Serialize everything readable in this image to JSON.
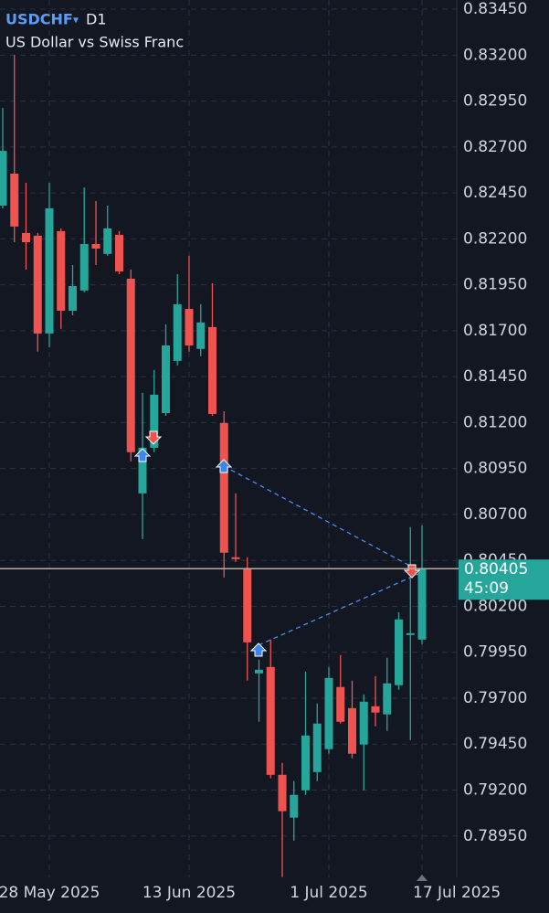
{
  "chart_data": {
    "type": "candlestick",
    "symbol": "USDCHF",
    "dropdown": "▾",
    "timeframe": "D1",
    "title": "US Dollar vs Swiss Franc",
    "categories": [
      null,
      null,
      null,
      null,
      "28 May 2025",
      null,
      null,
      null,
      null,
      null,
      null,
      null,
      null,
      null,
      null,
      null,
      "13 Jun 2025",
      null,
      null,
      null,
      null,
      null,
      null,
      null,
      null,
      null,
      null,
      null,
      "1 Jul 2025",
      null,
      null,
      null,
      null,
      null,
      null,
      null,
      "17 Jul 2025"
    ],
    "open": [
      0.82381,
      0.82555,
      0.82232,
      0.82217,
      0.81685,
      0.82242,
      0.81809,
      0.81919,
      0.82172,
      0.82118,
      0.82222,
      0.81983,
      0.80815,
      0.81063,
      0.81252,
      0.81536,
      0.81819,
      0.81601,
      0.8172,
      0.81198,
      0.80467,
      0.80407,
      0.79835,
      0.7987,
      0.79283,
      0.7905,
      0.79199,
      0.79298,
      0.79423,
      0.79761,
      0.79646,
      0.79448,
      0.79656,
      0.79612,
      0.79771,
      0.80044,
      0.80019
    ],
    "high": [
      0.82913,
      0.83201,
      0.82505,
      0.82232,
      0.82505,
      0.82257,
      0.82058,
      0.8248,
      0.82406,
      0.82381,
      0.82242,
      0.82033,
      0.81362,
      0.81486,
      0.81735,
      0.82008,
      0.82108,
      0.81844,
      0.81958,
      0.81262,
      0.80815,
      0.80467,
      0.7991,
      0.80019,
      0.79348,
      0.79249,
      0.79845,
      0.79671,
      0.7987,
      0.79935,
      0.79796,
      0.79721,
      0.7982,
      0.7992,
      0.80168,
      0.80631,
      0.80641
    ],
    "low": [
      0.82366,
      0.82182,
      0.82033,
      0.81586,
      0.8161,
      0.8171,
      0.81784,
      0.81909,
      0.82058,
      0.82108,
      0.82008,
      0.80989,
      0.80566,
      0.81039,
      0.81237,
      0.81511,
      0.81586,
      0.81561,
      0.81237,
      0.80357,
      0.80442,
      0.79796,
      0.79572,
      0.79264,
      0.78727,
      0.78925,
      0.79174,
      0.79249,
      0.79398,
      0.79562,
      0.79373,
      0.79199,
      0.79547,
      0.79522,
      0.79746,
      0.79472,
      0.79994
    ],
    "close": [
      0.82679,
      0.82267,
      0.82182,
      0.81685,
      0.82366,
      0.81809,
      0.81943,
      0.82172,
      0.82147,
      0.82257,
      0.82023,
      0.81039,
      0.81063,
      0.81352,
      0.8162,
      0.81844,
      0.8162,
      0.81745,
      0.81247,
      0.80492,
      0.80457,
      0.80004,
      0.79855,
      0.79283,
      0.79085,
      0.79174,
      0.79497,
      0.79562,
      0.7981,
      0.79572,
      0.79398,
      0.79681,
      0.79622,
      0.79781,
      0.80129,
      0.80054,
      0.80405
    ],
    "up_color": "#26a69a",
    "down_color": "#ef5350",
    "ylim": [
      0.78725,
      0.835
    ],
    "yticks": [
      {
        "value": 0.8345,
        "label": "0.83450"
      },
      {
        "value": 0.832,
        "label": "0.83200"
      },
      {
        "value": 0.8295,
        "label": "0.82950"
      },
      {
        "value": 0.827,
        "label": "0.82700"
      },
      {
        "value": 0.8245,
        "label": "0.82450"
      },
      {
        "value": 0.822,
        "label": "0.82200"
      },
      {
        "value": 0.8195,
        "label": "0.81950"
      },
      {
        "value": 0.817,
        "label": "0.81700"
      },
      {
        "value": 0.8145,
        "label": "0.81450"
      },
      {
        "value": 0.812,
        "label": "0.81200"
      },
      {
        "value": 0.8095,
        "label": "0.80950"
      },
      {
        "value": 0.807,
        "label": "0.80700"
      },
      {
        "value": 0.8045,
        "label": "0.80450"
      },
      {
        "value": 0.802,
        "label": "0.80200"
      },
      {
        "value": 0.7995,
        "label": "0.79950"
      },
      {
        "value": 0.797,
        "label": "0.79700"
      },
      {
        "value": 0.7945,
        "label": "0.79450"
      },
      {
        "value": 0.792,
        "label": "0.79200"
      },
      {
        "value": 0.7895,
        "label": "0.78950"
      }
    ],
    "grid": true,
    "current_price": 0.80405,
    "countdown": "45:09"
  }
}
